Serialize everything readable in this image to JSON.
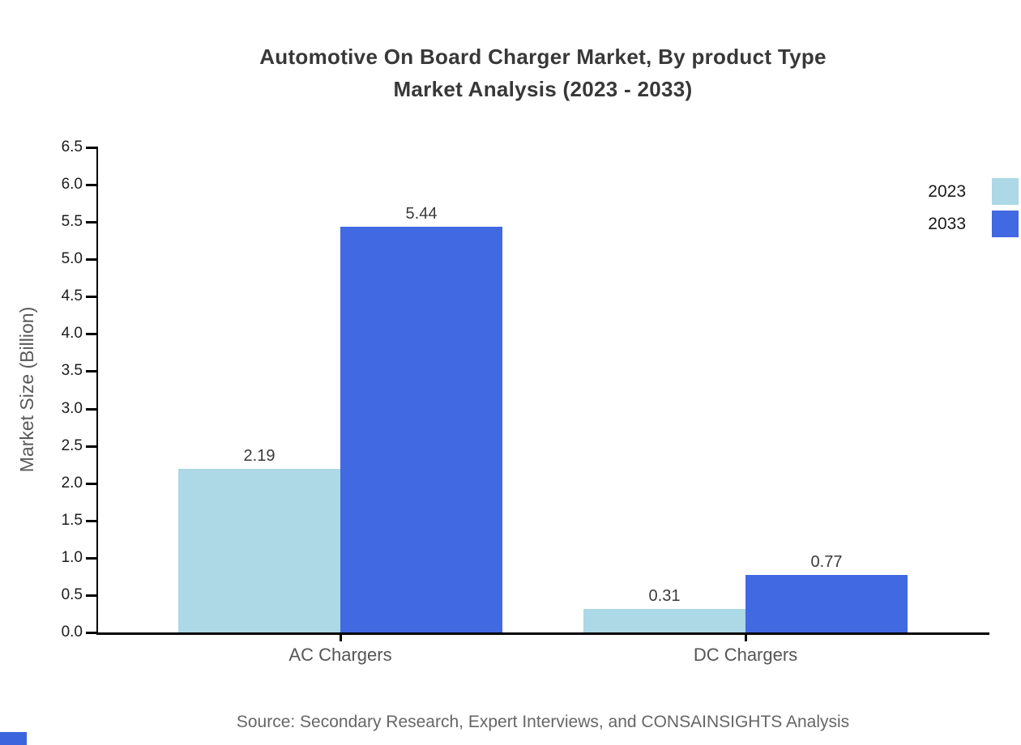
{
  "title": {
    "line1": "Automotive On Board Charger Market, By product Type",
    "line2": "Market Analysis (2023 - 2033)"
  },
  "source": "Source: Secondary Research, Expert Interviews, and CONSAINSIGHTS Analysis",
  "colors": {
    "series_2023": "#add8e6",
    "series_2033": "#4169e1",
    "title_text": "#383838",
    "axis_line": "#000000",
    "tick_text": "#1c1c1c",
    "muted_text": "#595959",
    "corner_mark": "#3c64dd"
  },
  "legend": {
    "items": [
      {
        "label": "2023",
        "color": "#add8e6"
      },
      {
        "label": "2033",
        "color": "#4169e1"
      }
    ]
  },
  "chart_data": {
    "type": "bar",
    "title": "Automotive On Board Charger Market, By product Type Market Analysis (2023 - 2033)",
    "categories": [
      "AC Chargers",
      "DC Chargers"
    ],
    "series": [
      {
        "name": "2023",
        "color": "#add8e6",
        "values": [
          2.19,
          0.31
        ]
      },
      {
        "name": "2033",
        "color": "#4169e1",
        "values": [
          5.44,
          0.77
        ]
      }
    ],
    "bar_value_labels": [
      [
        "2.19",
        "0.31"
      ],
      [
        "5.44",
        "0.77"
      ]
    ],
    "xlabel": "",
    "ylabel": "Market Size (Billion)",
    "ylim": [
      0.0,
      6.5
    ],
    "yticks": [
      0.0,
      0.5,
      1.0,
      1.5,
      2.0,
      2.5,
      3.0,
      3.5,
      4.0,
      4.5,
      5.0,
      5.5,
      6.0,
      6.5
    ],
    "grid": false,
    "legend_position": "upper right, outside plot, right edge"
  }
}
